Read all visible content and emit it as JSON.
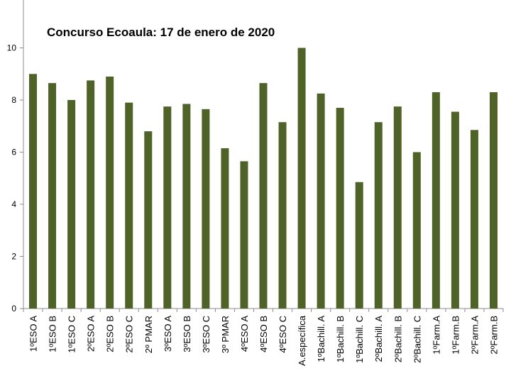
{
  "chart_data": {
    "type": "bar",
    "title": "Concurso Ecoaula: 17 de enero de 2020",
    "xlabel": "",
    "ylabel": "",
    "ylim": [
      0,
      11
    ],
    "yticks": [
      "0",
      "2",
      "4",
      "6",
      "8",
      "10"
    ],
    "grid": false,
    "legend": "none",
    "bar_color": "#4f6228",
    "categories": [
      "1ºESO A",
      "1ºESO B",
      "1ºESO C",
      "2ºESO A",
      "2ºESO B",
      "2ºESO C",
      "2º PMAR",
      "3ºESO A",
      "3ºESO B",
      "3ºESO C",
      "3º PMAR",
      "4ºESO A",
      "4ºESO B",
      "4ºESO C",
      "A.específica",
      "1ºBachill. A",
      "1ºBachill. B",
      "1ºBachill. C",
      "2ºBachill. A",
      "2ºBachill. B",
      "2ºBachill. C",
      "1ºFarm.A",
      "1ºFarm.B",
      "2ºFarm.A",
      "2ºFarm.B"
    ],
    "values": [
      9.0,
      8.65,
      8.0,
      8.75,
      8.9,
      7.9,
      6.8,
      7.75,
      7.85,
      7.65,
      6.15,
      5.65,
      8.65,
      7.15,
      10.0,
      8.25,
      7.7,
      4.85,
      7.15,
      7.75,
      6.0,
      8.3,
      7.55,
      6.85,
      8.3
    ]
  }
}
